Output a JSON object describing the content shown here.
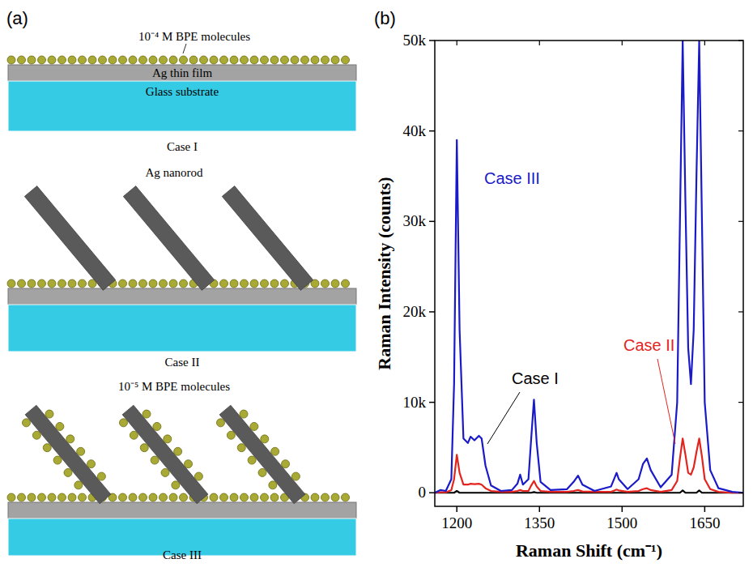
{
  "panel_labels": [
    "(a)",
    "(b)"
  ],
  "diagram": {
    "molecules_top": "10⁻⁴ M BPE molecules",
    "film": "Ag thin film",
    "substrate": "Glass substrate",
    "nanorod": "Ag nanorod",
    "molecules_rods": "10⁻⁵ M BPE molecules",
    "cases": [
      "Case I",
      "Case II",
      "Case III"
    ]
  },
  "chart_data": {
    "type": "line",
    "x_label": "Raman Shift (cm⁻¹)",
    "y_label": "Raman Intensity (counts)",
    "xlim": [
      1160,
      1720
    ],
    "xticks": [
      1200,
      1350,
      1500,
      1650
    ],
    "ylim": [
      -1500,
      50000
    ],
    "yticks": [
      0,
      {
        "value": 10000,
        "label": "10k"
      },
      {
        "value": 20000,
        "label": "20k"
      },
      {
        "value": 30000,
        "label": "30k"
      },
      {
        "value": 40000,
        "label": "40k"
      },
      {
        "value": 50000,
        "label": "50k"
      }
    ],
    "grid": false,
    "x": [
      1160,
      1170,
      1180,
      1190,
      1195,
      1200,
      1205,
      1212,
      1220,
      1225,
      1232,
      1240,
      1245,
      1252,
      1262,
      1280,
      1300,
      1310,
      1315,
      1320,
      1330,
      1335,
      1340,
      1345,
      1352,
      1370,
      1400,
      1412,
      1420,
      1428,
      1450,
      1480,
      1486,
      1490,
      1494,
      1510,
      1530,
      1538,
      1545,
      1552,
      1570,
      1590,
      1600,
      1605,
      1610,
      1615,
      1620,
      1625,
      1630,
      1635,
      1640,
      1645,
      1650,
      1660,
      1675,
      1700,
      1720
    ],
    "series": [
      {
        "name": "Case I",
        "color": "#000000",
        "values": [
          0,
          0,
          0,
          0,
          0,
          200,
          0,
          0,
          0,
          0,
          0,
          0,
          0,
          0,
          0,
          0,
          0,
          0,
          0,
          0,
          0,
          0,
          80,
          0,
          0,
          0,
          0,
          0,
          0,
          0,
          0,
          0,
          0,
          0,
          0,
          0,
          0,
          0,
          0,
          0,
          0,
          0,
          0,
          0,
          250,
          0,
          0,
          0,
          0,
          0,
          250,
          0,
          0,
          0,
          0,
          0,
          0
        ]
      },
      {
        "name": "Case II",
        "color": "#e3241f",
        "values": [
          0,
          50,
          50,
          300,
          1500,
          4200,
          2200,
          900,
          900,
          1000,
          950,
          1000,
          900,
          500,
          200,
          100,
          100,
          200,
          300,
          200,
          200,
          800,
          1300,
          700,
          200,
          100,
          100,
          200,
          300,
          150,
          100,
          100,
          250,
          350,
          250,
          100,
          200,
          400,
          500,
          300,
          100,
          300,
          1300,
          3800,
          6000,
          4200,
          2200,
          2000,
          2800,
          4500,
          6000,
          4000,
          1500,
          400,
          100,
          0,
          0
        ]
      },
      {
        "name": "Case III",
        "color": "#1a1ac8",
        "values": [
          0,
          300,
          200,
          1500,
          12000,
          39000,
          18000,
          6000,
          5500,
          6200,
          5800,
          6300,
          6000,
          3000,
          800,
          200,
          300,
          1000,
          2000,
          900,
          1500,
          6000,
          10300,
          5500,
          1200,
          300,
          400,
          1200,
          1900,
          900,
          200,
          700,
          1600,
          2200,
          1500,
          400,
          1500,
          3200,
          3800,
          2500,
          600,
          2000,
          10000,
          30000,
          50000,
          32000,
          16000,
          12000,
          18000,
          35000,
          50000,
          30000,
          10000,
          2500,
          500,
          100,
          0
        ]
      }
    ]
  }
}
